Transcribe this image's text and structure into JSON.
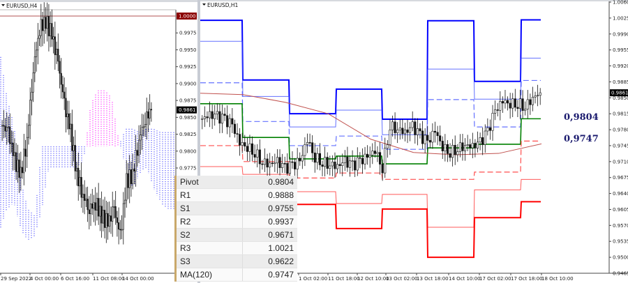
{
  "left_chart": {
    "title": "EURUSD,H4",
    "y_ticks": [
      "0.9975",
      "0.9950",
      "0.9925",
      "0.9900",
      "0.9875",
      "0.9850",
      "0.9825",
      "0.9800",
      "0.9775"
    ],
    "y_tick_values": [
      0.9975,
      0.995,
      0.9925,
      0.99,
      0.9875,
      0.985,
      0.9825,
      0.98,
      0.9775
    ],
    "level_label": "1.0000",
    "level_value": 1.0,
    "level_color": "#8b0000",
    "price_label": "0.9861",
    "price_value": 0.9861,
    "x_ticks": [
      "29 Sep 2022",
      "4 Oct 00:00",
      "6 Oct 16:00",
      "11 Oct 08:00",
      "14 Oct 00:00"
    ],
    "closes": [
      0.9838,
      0.9828,
      0.9786,
      0.9766,
      0.9817,
      0.9921,
      0.9982,
      0.9993,
      0.9972,
      0.9931,
      0.9869,
      0.9828,
      0.9766,
      0.9735,
      0.9714,
      0.9724,
      0.9704,
      0.9693,
      0.9714,
      0.9673,
      0.9755,
      0.9766,
      0.9817,
      0.9848,
      0.9861
    ],
    "ichimoku_span_a": [
      0.9683,
      0.9714,
      0.9724,
      0.9683,
      0.9668,
      0.9673,
      0.9714,
      0.9776,
      0.9776,
      0.9776,
      0.9776,
      0.9776,
      0.9786,
      0.9869,
      0.989,
      0.989,
      0.9879,
      0.9817,
      0.9776,
      0.9745,
      0.9766,
      0.9776,
      0.9745,
      0.9724,
      0.9714,
      0.9714
    ],
    "ichimoku_span_b": [
      0.9946,
      0.9879,
      0.9838,
      0.9755,
      0.9714,
      0.9704,
      0.9807,
      0.9807,
      0.9807,
      0.9807,
      0.9807,
      0.9807,
      0.9807,
      0.9807,
      0.9807,
      0.9807,
      0.9807,
      0.9807,
      0.9833,
      0.9833,
      0.9828,
      0.9833,
      0.9833,
      0.9828,
      0.9828,
      0.9828
    ],
    "cloud_colors": {
      "bullish": "#ff00ff",
      "bearish": "#3333ff"
    }
  },
  "right_chart": {
    "title": "EURUSD,H1",
    "y_ticks": [
      "1.0060",
      "1.0025",
      "0.9990",
      "0.9955",
      "0.9920",
      "0.9885",
      "0.9850",
      "0.9815",
      "0.9780",
      "0.9745",
      "0.9710",
      "0.9675",
      "0.9640",
      "0.9605",
      "0.9570",
      "0.9535",
      "0.9500",
      "0.9465"
    ],
    "y_tick_values": [
      1.006,
      1.0025,
      0.999,
      0.9955,
      0.992,
      0.9885,
      0.985,
      0.9815,
      0.978,
      0.9745,
      0.971,
      0.9675,
      0.964,
      0.9605,
      0.957,
      0.9535,
      0.95,
      0.9465
    ],
    "price_label": "0.9861",
    "price_value": 0.9861,
    "x_ticks": [
      "1 Oct 02:00",
      "11 Oct 18:00",
      "12 Oct 10:00",
      "13 Oct 02:00",
      "13 Oct 18:00",
      "14 Oct 10:00",
      "17 Oct 02:00",
      "17 Oct 18:00",
      "18 Oct 10:00"
    ],
    "closes": [
      0.9804,
      0.9812,
      0.9808,
      0.9801,
      0.9789,
      0.9751,
      0.9743,
      0.9731,
      0.971,
      0.9705,
      0.971,
      0.9694,
      0.97,
      0.971,
      0.9759,
      0.972,
      0.971,
      0.9705,
      0.97,
      0.971,
      0.97,
      0.971,
      0.972,
      0.9736,
      0.9697,
      0.9789,
      0.9782,
      0.9774,
      0.9786,
      0.9766,
      0.9751,
      0.9777,
      0.9743,
      0.9731,
      0.974,
      0.9746,
      0.9743,
      0.9751,
      0.9774,
      0.982,
      0.9843,
      0.9838,
      0.9838,
      0.9832,
      0.985,
      0.9861
    ],
    "pivot_levels": [
      {
        "name": "R3",
        "color": "#0000ff",
        "style": "thick",
        "values": [
          1.002,
          0.9889,
          0.9815,
          0.9869,
          0.9803,
          1.0019,
          0.9886,
          1.0021
        ]
      },
      {
        "name": "R2",
        "color": "#3c4cff",
        "style": "thin",
        "values": [
          0.9974,
          0.9853,
          0.9786,
          0.9823,
          0.9769,
          0.9913,
          0.9847,
          0.9937
        ]
      },
      {
        "name": "R1",
        "color": "#3c4cff",
        "style": "dashed",
        "values": [
          0.9883,
          0.9798,
          0.9745,
          0.9766,
          0.9737,
          0.9846,
          0.9786,
          0.9888
        ]
      },
      {
        "name": "Pivot",
        "color": "#008000",
        "style": "medium",
        "values": [
          0.9837,
          0.9763,
          0.9716,
          0.9722,
          0.9705,
          0.974,
          0.9748,
          0.9804
        ]
      },
      {
        "name": "S1",
        "color": "#ff2020",
        "style": "dashed",
        "values": [
          0.9745,
          0.971,
          0.9674,
          0.9685,
          0.9671,
          0.9671,
          0.9687,
          0.9755
        ]
      },
      {
        "name": "S2",
        "color": "#ff3030",
        "style": "thin",
        "values": [
          0.9699,
          0.9682,
          0.9644,
          0.9618,
          0.9638,
          0.9566,
          0.9648,
          0.9671
        ]
      },
      {
        "name": "S3",
        "color": "#ff0000",
        "style": "thick",
        "values": [
          0.9664,
          0.9651,
          0.9616,
          0.9563,
          0.9606,
          0.95,
          0.9587,
          0.9622
        ]
      }
    ],
    "ma120": {
      "color": "#c0504d",
      "values": [
        0.986,
        0.9857,
        0.984,
        0.9815,
        0.9759,
        0.973,
        0.9725,
        0.9728,
        0.9749
      ]
    },
    "annotations": [
      "0,9804",
      "0,9747"
    ]
  },
  "levels_table": [
    {
      "label": "Pivot",
      "value": "0.9804"
    },
    {
      "label": "R1",
      "value": "0.9888"
    },
    {
      "label": "S1",
      "value": "0.9755"
    },
    {
      "label": "R2",
      "value": "0.9937"
    },
    {
      "label": "S2",
      "value": "0.9671"
    },
    {
      "label": "R3",
      "value": "1.0021"
    },
    {
      "label": "S3",
      "value": "0.9622"
    },
    {
      "label": "MA(120)",
      "value": "0.9747"
    }
  ]
}
